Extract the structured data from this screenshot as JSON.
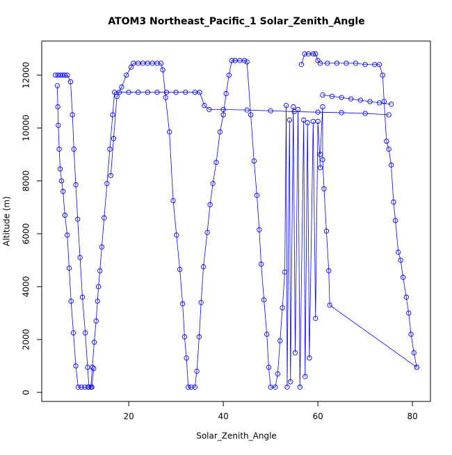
{
  "chart_data": {
    "type": "line",
    "title": "ATOM3 Northeast_Pacific_1 Solar_Zenith_Angle",
    "x_label": "Solar_Zenith_Angle",
    "y_label": "Altitude (m)",
    "xlim": [
      1.6,
      83.8
    ],
    "ylim": [
      -342,
      13289
    ],
    "xticks": [
      20,
      40,
      60,
      80
    ],
    "yticks": [
      0,
      2000,
      4000,
      6000,
      8000,
      10000,
      12000
    ],
    "series": [
      {
        "color": "#0000ff",
        "x": [
          4.5,
          5,
          5.5,
          6,
          6.5,
          7,
          7.7,
          8.1,
          8.4,
          8.8,
          9.2,
          9.7,
          10.2,
          10.8,
          11.3,
          11.6,
          12.2,
          12.6,
          null,
          4.9,
          5.0,
          5.1,
          5.3,
          5.5,
          5.8,
          6.1,
          6.5,
          7.0,
          7.4,
          7.8,
          8.3,
          8.8,
          9.3,
          10,
          10.7,
          11.4,
          12,
          12.3,
          12.7,
          13.1,
          13.4,
          13.6,
          13.9,
          14.3,
          14.8,
          15.4,
          16,
          16.6,
          17,
          18,
          20,
          22,
          24,
          26,
          28,
          30,
          32,
          34,
          35,
          36,
          37,
          40,
          45,
          50,
          55,
          60,
          65,
          70,
          75,
          null,
          16.2,
          16.8,
          17.5,
          18.5,
          19.5,
          20.5,
          21,
          22,
          23,
          24,
          25,
          26,
          26.8,
          27.2,
          27.8,
          28.6,
          29.4,
          30.1,
          30.8,
          31.4,
          31.8,
          32.2,
          32.6,
          33.2,
          34,
          34.4,
          34.9,
          35.3,
          35.8,
          36.6,
          37.2,
          37.8,
          38.5,
          39.3,
          40,
          40.6,
          41.2,
          41.8,
          42.5,
          43.5,
          44.5,
          45,
          45.8,
          46.5,
          47.1,
          47.6,
          48,
          48.6,
          49.2,
          49.6,
          50,
          51,
          51.5,
          52,
          52.5,
          53,
          53.3,
          53.5,
          54,
          54.2,
          54.8,
          55.2,
          55.8,
          56.2,
          57,
          57.3,
          57.8,
          58.2,
          59,
          59.5,
          60,
          60.5,
          null,
          56.5,
          57.2,
          58,
          59,
          59.5,
          60,
          60.5,
          62,
          64,
          66,
          68,
          70,
          72,
          73,
          73.7,
          74,
          74.5,
          75,
          75.5,
          76,
          76.4,
          77,
          77.5,
          78,
          78.7,
          79.2,
          79.7,
          80.3,
          80.9,
          null,
          60.5,
          61,
          61,
          61.3,
          61.8,
          62.3,
          62.5,
          80.9,
          null,
          61,
          63,
          65,
          67,
          69,
          71,
          73,
          75.5
        ],
        "values": [
          12000,
          12000,
          12000,
          12000,
          12000,
          12000,
          11750,
          10500,
          9200,
          7850,
          6550,
          5100,
          3600,
          2250,
          950,
          200,
          200,
          900,
          null,
          11600,
          10800,
          10100,
          9200,
          8450,
          8000,
          7600,
          6700,
          5950,
          4700,
          3450,
          2250,
          1000,
          200,
          200,
          200,
          200,
          200,
          950,
          1900,
          2700,
          3450,
          4000,
          4600,
          5500,
          6600,
          7900,
          9200,
          10500,
          11350,
          11350,
          11350,
          11350,
          11350,
          11350,
          11350,
          11350,
          11350,
          11350,
          11350,
          10850,
          10700,
          10700,
          10680,
          10650,
          10620,
          10600,
          10580,
          10550,
          10500,
          null,
          8200,
          9600,
          11200,
          11550,
          12000,
          12300,
          12450,
          12450,
          12450,
          12450,
          12450,
          12450,
          12450,
          12200,
          11150,
          9850,
          7250,
          5950,
          4650,
          3350,
          2100,
          1300,
          200,
          200,
          200,
          800,
          2100,
          3400,
          4750,
          6050,
          7100,
          7900,
          8700,
          9850,
          10500,
          11300,
          12000,
          12550,
          12550,
          12550,
          12550,
          12500,
          10500,
          8750,
          7450,
          6150,
          4850,
          3500,
          2200,
          950,
          200,
          200,
          700,
          1950,
          3200,
          4550,
          10850,
          200,
          10300,
          400,
          10800,
          1500,
          10700,
          200,
          10300,
          600,
          10200,
          1300,
          10250,
          2800,
          10250,
          8500,
          null,
          12400,
          12800,
          12800,
          12800,
          12800,
          12550,
          12450,
          12450,
          12450,
          12450,
          12450,
          12400,
          12400,
          12400,
          12000,
          11000,
          9500,
          9200,
          8600,
          7200,
          6500,
          5300,
          5000,
          4350,
          3600,
          3000,
          2200,
          1500,
          950,
          null,
          9000,
          10800,
          8800,
          7700,
          6100,
          4600,
          3300,
          950,
          null,
          11250,
          11200,
          11150,
          11100,
          11050,
          11000,
          10950,
          10900
        ]
      }
    ]
  }
}
